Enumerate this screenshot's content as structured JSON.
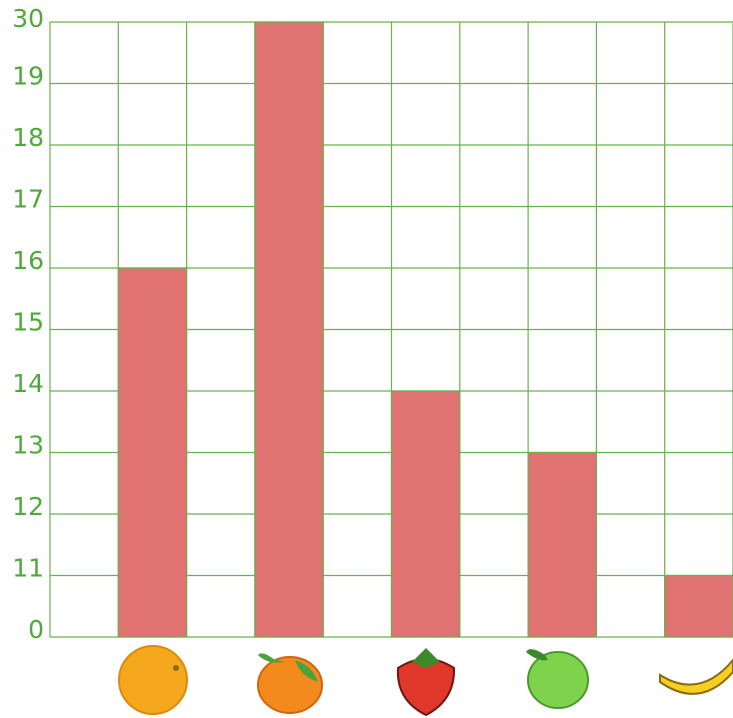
{
  "chart_data": {
    "type": "bar",
    "categories": [
      null,
      null,
      null,
      null,
      null
    ],
    "values": [
      16,
      30,
      14,
      13,
      11
    ],
    "color": "#e07272",
    "ylim": [
      0,
      30
    ],
    "yticks": [
      0,
      11,
      12,
      13,
      14,
      15,
      16,
      17,
      18,
      19,
      30
    ],
    "grid": true
  }
}
